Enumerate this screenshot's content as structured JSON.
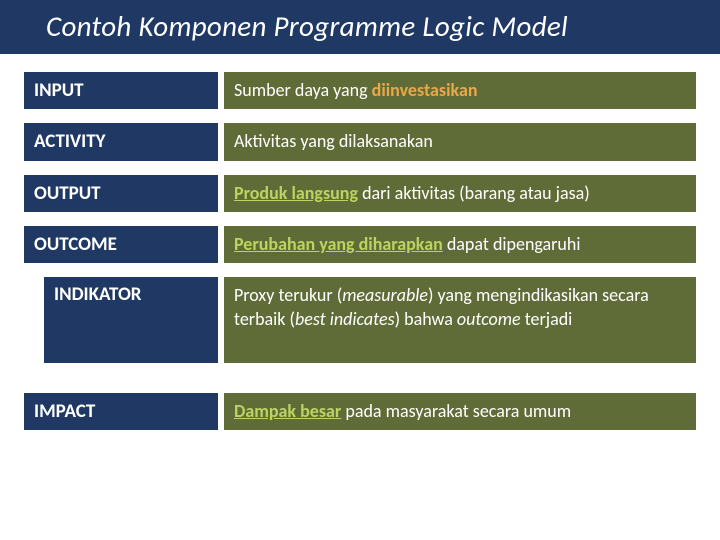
{
  "title": "Contoh Komponen Programme Logic Model",
  "colors": {
    "navy": "#1f3864",
    "olive": "#606c38",
    "orange": "#e9a84a",
    "lightgreen": "#bcd35f",
    "white": "#ffffff"
  },
  "rows": {
    "input": {
      "label": "INPUT",
      "desc_prefix": "Sumber daya yang ",
      "desc_highlight": "diinvestasikan"
    },
    "activity": {
      "label": "ACTIVITY",
      "desc": "Aktivitas yang dilaksanakan"
    },
    "output": {
      "label": "OUTPUT",
      "desc_highlight": "Produk langsung",
      "desc_suffix": " dari aktivitas (barang atau jasa)"
    },
    "outcome": {
      "label": "OUTCOME",
      "desc_highlight": "Perubahan yang diharapkan",
      "desc_suffix": " dapat dipengaruhi"
    },
    "indikator": {
      "label": "INDIKATOR",
      "part1": "Proxy terukur (",
      "em1": "measurable",
      "part2": ") yang mengindikasikan secara terbaik (",
      "em2": "best indicates",
      "part3": ") bahwa ",
      "outcome_word": "outcome",
      "part4": " terjadi"
    },
    "impact": {
      "label": "IMPACT",
      "desc_highlight": "Dampak besar",
      "desc_suffix": " pada masyarakat secara umum"
    }
  }
}
